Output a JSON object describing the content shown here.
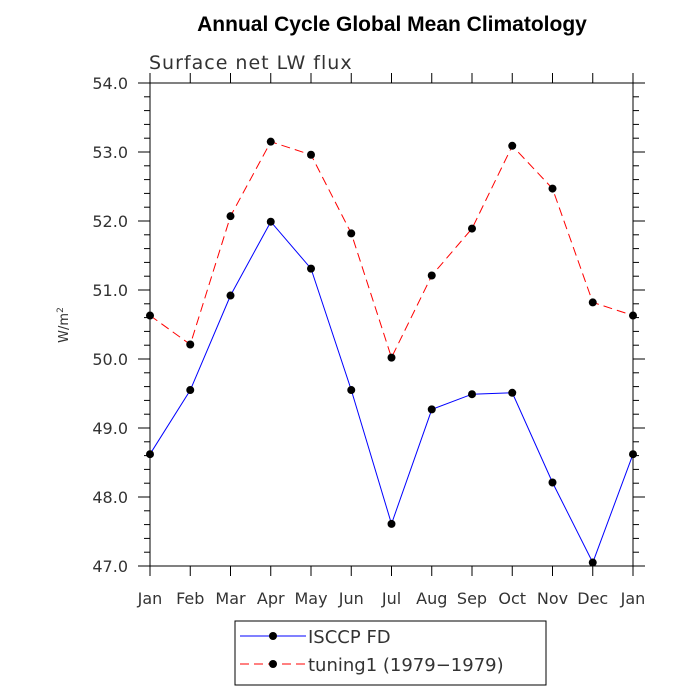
{
  "chart_data": {
    "type": "line",
    "title": "Annual Cycle Global Mean Climatology",
    "subtitle": "Surface net LW flux",
    "xlabel": "",
    "ylabel": "W/m",
    "ylabel_superscript": "2",
    "categories": [
      "Jan",
      "Feb",
      "Mar",
      "Apr",
      "May",
      "Jun",
      "Jul",
      "Aug",
      "Sep",
      "Oct",
      "Nov",
      "Dec",
      "Jan"
    ],
    "ylim": [
      47.0,
      54.0
    ],
    "yticks": [
      "47.0",
      "48.0",
      "49.0",
      "50.0",
      "51.0",
      "52.0",
      "53.0",
      "54.0"
    ],
    "series": [
      {
        "name": "ISCCP FD",
        "color": "#0000ff",
        "dash": "solid",
        "values": [
          48.62,
          49.55,
          50.92,
          51.99,
          51.31,
          49.55,
          47.61,
          49.27,
          49.49,
          49.51,
          48.21,
          47.05,
          48.62
        ]
      },
      {
        "name": "tuning1 (1979−1979)",
        "color": "#ff0000",
        "dash": "dashed",
        "values": [
          50.63,
          50.21,
          52.07,
          53.15,
          52.96,
          51.82,
          50.02,
          51.21,
          51.89,
          53.09,
          52.47,
          50.82,
          50.63
        ]
      }
    ],
    "legend": "bottom-center",
    "grid": false
  }
}
